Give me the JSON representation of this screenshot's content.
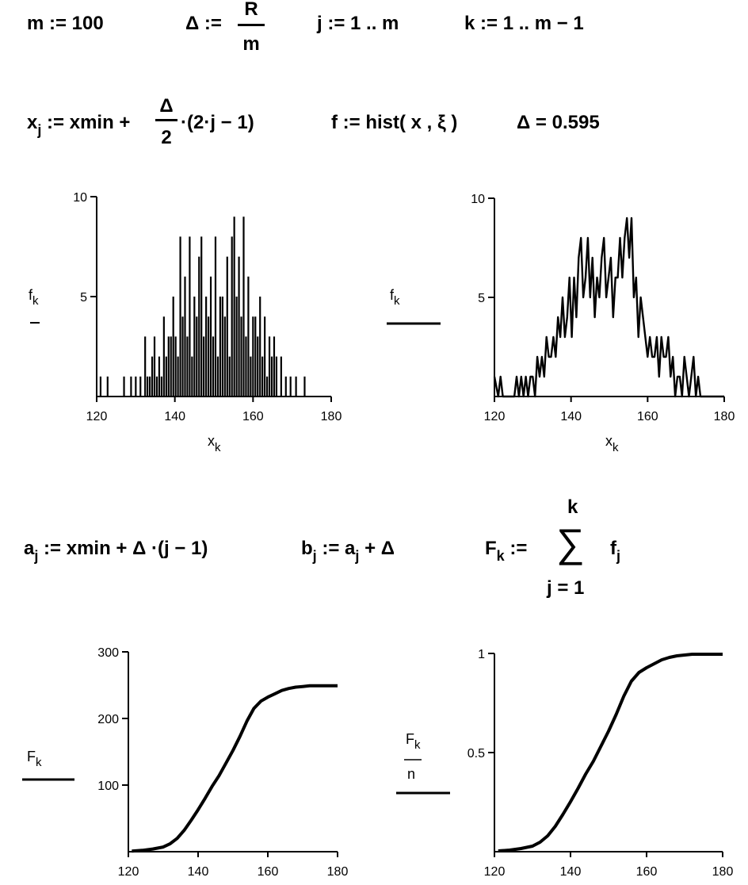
{
  "equations": {
    "m_def": "m := 100",
    "delta_lhs": "Δ :=",
    "delta_num": "R",
    "delta_den": "m",
    "j_range": "j := 1 .. m",
    "k_range": "k := 1 .. m − 1",
    "x_lhs_base": "x",
    "x_lhs_sub": "j",
    "x_rhs_a": ":= xmin +",
    "x_frac_num": "Δ",
    "x_frac_den": "2",
    "x_rhs_b": "·(2·j − 1)",
    "f_hist": "f := hist( x , ξ )",
    "delta_value": "Δ = 0.595",
    "a_base": "a",
    "a_sub": "j",
    "a_rhs": ":= xmin + Δ ·(j − 1)",
    "b_base": "b",
    "b_sub": "j",
    "b_rhs_a": ":= a",
    "b_rhs_sub": "j",
    "b_rhs_b": "+ Δ",
    "F_base": "F",
    "F_sub": "k",
    "F_assign": ":=",
    "sum_top": "k",
    "sum_sym": "∑",
    "sum_bottom": "j = 1",
    "sum_term_base": "f",
    "sum_term_sub": "j"
  },
  "plot_labels": {
    "p1_ylabel": "f",
    "p1_ylabel_sub": "k",
    "p1_xlabel": "x",
    "p1_xlabel_sub": "k",
    "p2_ylabel": "f",
    "p2_ylabel_sub": "k",
    "p2_xlabel": "x",
    "p2_xlabel_sub": "k",
    "p3_ylabel": "F",
    "p3_ylabel_sub": "k",
    "p4_ylabel_num": "F",
    "p4_ylabel_num_sub": "k",
    "p4_ylabel_den": "n"
  },
  "chart_data": [
    {
      "type": "bar",
      "description_series": "f_k histogram drawn as vertical stems",
      "x_ticks": [
        120,
        140,
        160,
        180
      ],
      "y_ticks": [
        5,
        10
      ],
      "xlim": [
        120,
        180
      ],
      "ylim": [
        0,
        10
      ],
      "x": [
        121.0,
        122.8,
        127.0,
        128.8,
        130.0,
        131.2,
        132.4,
        133.0,
        133.6,
        134.2,
        134.8,
        135.4,
        136.0,
        136.6,
        137.2,
        137.8,
        138.4,
        139.0,
        139.6,
        140.2,
        140.8,
        141.4,
        142.0,
        142.6,
        143.2,
        143.8,
        144.4,
        145.0,
        145.6,
        146.2,
        146.8,
        147.4,
        148.0,
        148.6,
        149.2,
        149.8,
        150.4,
        151.0,
        151.6,
        152.2,
        152.8,
        153.4,
        154.0,
        154.6,
        155.2,
        155.8,
        156.4,
        157.0,
        157.6,
        158.2,
        158.8,
        159.4,
        160.0,
        160.6,
        161.2,
        161.8,
        162.4,
        163.0,
        163.6,
        164.2,
        164.8,
        165.4,
        166.0,
        167.2,
        168.4,
        169.6,
        171.0,
        173.2
      ],
      "values": [
        1,
        1,
        1,
        1,
        1,
        1,
        3,
        1,
        1,
        2,
        3,
        1,
        2,
        1,
        4,
        2,
        3,
        3,
        5,
        3,
        2,
        8,
        4,
        6,
        3,
        8,
        2,
        5,
        4,
        7,
        8,
        3,
        5,
        4,
        6,
        3,
        8,
        2,
        5,
        5,
        4,
        7,
        2,
        8,
        9,
        5,
        7,
        4,
        9,
        3,
        6,
        2,
        4,
        4,
        3,
        5,
        2,
        4,
        1,
        3,
        2,
        3,
        2,
        2,
        1,
        1,
        1,
        1
      ]
    },
    {
      "type": "line",
      "description_series": "f_k connected line",
      "x_ticks": [
        120,
        140,
        160,
        180
      ],
      "y_ticks": [
        5,
        10
      ],
      "xlim": [
        120,
        180
      ],
      "ylim": [
        0,
        10
      ],
      "x": [
        120.0,
        121.0,
        121.6,
        122.2,
        122.8,
        123.4,
        124.0,
        124.6,
        125.2,
        125.8,
        126.4,
        127.0,
        127.6,
        128.2,
        128.8,
        129.4,
        130.0,
        130.6,
        131.2,
        131.8,
        132.4,
        133.0,
        133.6,
        134.2,
        134.8,
        135.4,
        136.0,
        136.6,
        137.2,
        137.8,
        138.4,
        139.0,
        139.6,
        140.2,
        140.8,
        141.4,
        142.0,
        142.6,
        143.2,
        143.8,
        144.4,
        145.0,
        145.6,
        146.2,
        146.8,
        147.4,
        148.0,
        148.6,
        149.2,
        149.8,
        150.4,
        151.0,
        151.6,
        152.2,
        152.8,
        153.4,
        154.0,
        154.6,
        155.2,
        155.8,
        156.4,
        157.0,
        157.6,
        158.2,
        158.8,
        159.4,
        160.0,
        160.6,
        161.2,
        161.8,
        162.4,
        163.0,
        163.6,
        164.2,
        164.8,
        165.4,
        166.0,
        166.6,
        167.2,
        167.8,
        168.4,
        169.0,
        169.6,
        170.2,
        170.8,
        171.4,
        172.0,
        172.6,
        173.2,
        173.8,
        174.4,
        175.0,
        180.0
      ],
      "values": [
        1,
        0,
        1,
        0,
        0,
        0,
        0,
        0,
        0,
        1,
        0,
        1,
        0,
        1,
        0,
        1,
        1,
        0,
        2,
        1,
        2,
        1,
        3,
        2,
        2,
        3,
        2,
        4,
        3,
        5,
        3,
        4,
        6,
        3,
        6,
        4,
        7,
        8,
        5,
        6,
        8,
        5,
        7,
        4,
        6,
        5,
        7,
        8,
        5,
        6,
        7,
        4,
        6,
        6,
        8,
        6,
        8,
        9,
        7,
        9,
        5,
        6,
        3,
        5,
        4,
        3,
        2,
        3,
        2,
        2,
        3,
        1,
        3,
        2,
        2,
        3,
        1,
        2,
        0,
        1,
        1,
        0,
        2,
        1,
        0,
        1,
        2,
        0,
        1,
        0,
        0,
        0,
        0
      ]
    },
    {
      "type": "line",
      "description_series": "F_k cumulative counts",
      "x_ticks": [
        120,
        140,
        160,
        180
      ],
      "y_ticks": [
        100,
        200,
        300
      ],
      "xlim": [
        120,
        180
      ],
      "ylim": [
        0,
        300
      ],
      "x": [
        121,
        124,
        127,
        130,
        132,
        134,
        136,
        138,
        140,
        142,
        144,
        146,
        148,
        150,
        152,
        154,
        156,
        158,
        160,
        162,
        164,
        166,
        168,
        170,
        172,
        174,
        176,
        178,
        180
      ],
      "values": [
        1,
        2,
        4,
        7,
        12,
        20,
        32,
        47,
        63,
        80,
        98,
        114,
        133,
        152,
        173,
        196,
        215,
        226,
        232,
        237,
        242,
        245,
        247,
        248,
        249,
        249,
        249,
        249,
        249
      ]
    },
    {
      "type": "line",
      "description_series": "F_k / n normalized cumulative",
      "x_ticks": [
        120,
        140,
        160,
        180
      ],
      "y_ticks": [
        0.5,
        1
      ],
      "xlim": [
        120,
        180
      ],
      "ylim": [
        0,
        1
      ],
      "x": [
        121,
        124,
        127,
        130,
        132,
        134,
        136,
        138,
        140,
        142,
        144,
        146,
        148,
        150,
        152,
        154,
        156,
        158,
        160,
        162,
        164,
        166,
        168,
        170,
        172,
        174,
        176,
        178,
        180
      ],
      "values": [
        0.004,
        0.008,
        0.016,
        0.028,
        0.048,
        0.08,
        0.128,
        0.188,
        0.252,
        0.32,
        0.392,
        0.456,
        0.532,
        0.608,
        0.692,
        0.784,
        0.86,
        0.904,
        0.928,
        0.948,
        0.968,
        0.98,
        0.988,
        0.992,
        0.996,
        0.996,
        0.996,
        0.996,
        0.996
      ]
    }
  ]
}
